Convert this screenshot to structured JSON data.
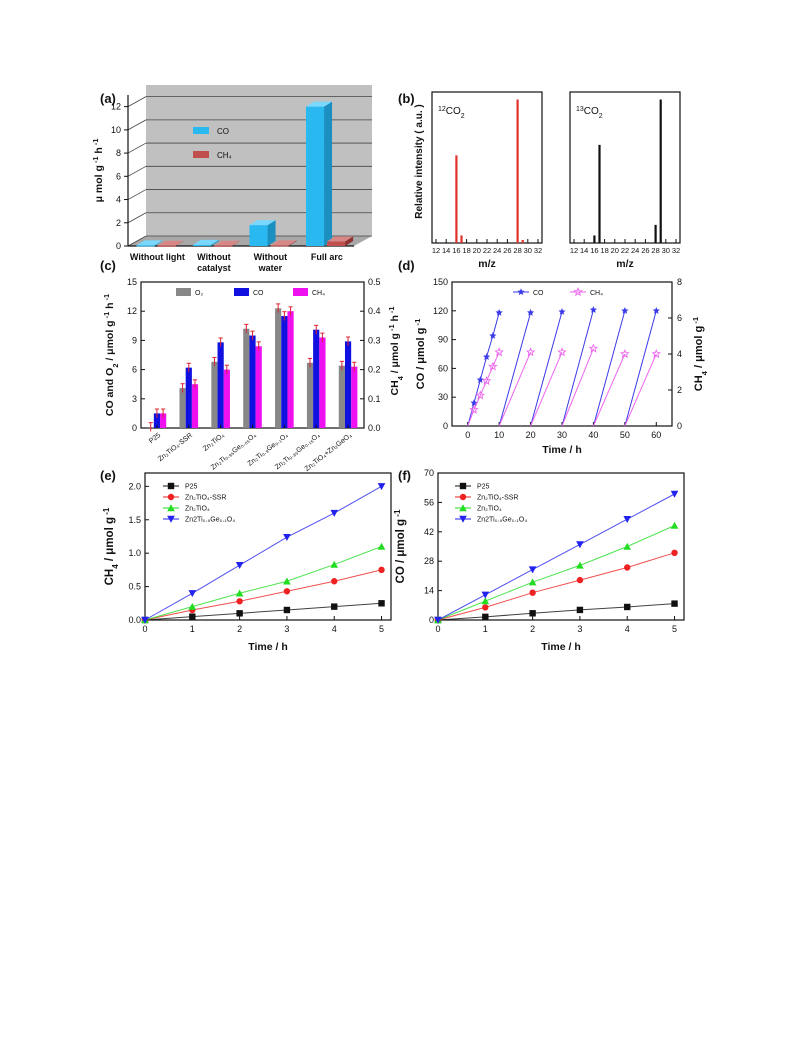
{
  "chart_data": [
    {
      "panel": "(a)",
      "type": "bar",
      "ylabel": "μ mol g-1 h-1",
      "yticks": [
        "0",
        "2",
        "4",
        "6",
        "8",
        "10",
        "12"
      ],
      "ylim": [
        0,
        13
      ],
      "categories": [
        "Without light",
        "Without catalyst",
        "Without water",
        "Full arc"
      ],
      "category_lines": [
        [
          "Without light"
        ],
        [
          "Without",
          "catalyst"
        ],
        [
          "Without",
          "water"
        ],
        [
          "Full arc"
        ]
      ],
      "series": [
        {
          "name": "CO",
          "color": "#29b8f0",
          "values": [
            0.05,
            0.1,
            1.8,
            12.0
          ]
        },
        {
          "name": "CH₄",
          "color": "#c0504d",
          "values": [
            0.02,
            0.02,
            0.05,
            0.4
          ]
        }
      ],
      "legend_position": "upper-center",
      "background": "#c0c0c0"
    },
    {
      "panel": "(b)",
      "type": "bar",
      "ylabel": "Relative intensity ( a.u. )",
      "xlabel": "m/z",
      "xticks": [
        12,
        14,
        16,
        18,
        20,
        22,
        24,
        26,
        28,
        30,
        32
      ],
      "xlim": [
        12,
        32
      ],
      "subplots": [
        {
          "label_sup": "12",
          "label_main": "CO",
          "label_sub": "2",
          "color": "#e0302a",
          "x": [
            16,
            17,
            28,
            29
          ],
          "values": [
            0.58,
            0.05,
            0.95,
            0.02
          ]
        },
        {
          "label_sup": "13",
          "label_main": "CO",
          "label_sub": "2",
          "color": "#111111",
          "x": [
            16,
            17,
            28,
            29
          ],
          "values": [
            0.05,
            0.65,
            0.12,
            0.95
          ]
        }
      ]
    },
    {
      "panel": "(c)",
      "type": "bar",
      "ylabel_left": "CO and O2 / μmol g-1 h-1",
      "ylabel_right": "CH4 / μmol g-1 h-1",
      "ylim_left": [
        0,
        15
      ],
      "ylim_right": [
        0,
        0.5
      ],
      "yticks_left": [
        "0",
        "3",
        "6",
        "9",
        "12",
        "15"
      ],
      "yticks_right": [
        "0.0",
        "0.1",
        "0.2",
        "0.3",
        "0.4",
        "0.5"
      ],
      "categories": [
        "P25",
        "Zn₂TiO₄-SSR",
        "Zn₂TiO₄",
        "Zn₂Ti₀.₉₅Ge₀.₀₅O₄",
        "Zn₂Ti₀.₉Ge₀.₁O₄",
        "Zn₂Ti₀.₈₅Ge₀.₁₅O₄",
        "Zn₂TiO₄+Zn₂GeO₄"
      ],
      "series": [
        {
          "name": "O₂",
          "color": "#888888",
          "axis": "left",
          "values": [
            0.1,
            4.1,
            6.8,
            10.2,
            12.3,
            6.7,
            6.4
          ]
        },
        {
          "name": "CO",
          "color": "#1010e0",
          "axis": "left",
          "values": [
            1.5,
            6.2,
            8.8,
            9.5,
            11.5,
            10.1,
            8.9
          ]
        },
        {
          "name": "CH₄",
          "color": "#ee10ee",
          "axis": "right",
          "values": [
            0.05,
            0.15,
            0.2,
            0.28,
            0.4,
            0.31,
            0.21
          ]
        }
      ]
    },
    {
      "panel": "(d)",
      "type": "line",
      "xlabel": "Time / h",
      "ylabel_left": "CO / μmol g-1",
      "ylabel_right": "CH4 / μmol g-1",
      "xlim": [
        -5,
        65
      ],
      "xticks": [
        0,
        10,
        20,
        30,
        40,
        50,
        60
      ],
      "ylim_left": [
        0,
        150
      ],
      "yticks_left": [
        0,
        30,
        60,
        90,
        120,
        150
      ],
      "ylim_right": [
        0,
        8
      ],
      "yticks_right": [
        0,
        2,
        4,
        6,
        8
      ],
      "series": [
        {
          "name": "CO",
          "color": "#3a3ae8",
          "marker": "star",
          "axis": "left",
          "first_cycle": {
            "x": [
              0,
              2,
              4,
              6,
              8,
              10
            ],
            "y": [
              0,
              24,
              48,
              72,
              94,
              118
            ]
          },
          "cycles": [
            {
              "x": [
                10,
                20
              ],
              "y": [
                0,
                118
              ]
            },
            {
              "x": [
                20,
                30
              ],
              "y": [
                0,
                119
              ]
            },
            {
              "x": [
                30,
                40
              ],
              "y": [
                0,
                121
              ]
            },
            {
              "x": [
                40,
                50
              ],
              "y": [
                0,
                120
              ]
            },
            {
              "x": [
                50,
                60
              ],
              "y": [
                0,
                120
              ]
            }
          ]
        },
        {
          "name": "CH₄",
          "color": "#ee66ee",
          "marker": "open-star",
          "axis": "right",
          "first_cycle": {
            "x": [
              0,
              2,
              4,
              6,
              8,
              10
            ],
            "y": [
              0,
              0.9,
              1.7,
              2.5,
              3.3,
              4.1
            ]
          },
          "cycles": [
            {
              "x": [
                10,
                20
              ],
              "y": [
                0,
                4.1
              ]
            },
            {
              "x": [
                20,
                30
              ],
              "y": [
                0,
                4.1
              ]
            },
            {
              "x": [
                30,
                40
              ],
              "y": [
                0,
                4.3
              ]
            },
            {
              "x": [
                40,
                50
              ],
              "y": [
                0,
                4.0
              ]
            },
            {
              "x": [
                50,
                60
              ],
              "y": [
                0,
                4.0
              ]
            }
          ]
        }
      ]
    },
    {
      "panel": "(e)",
      "type": "line",
      "xlabel": "Time / h",
      "ylabel": "CH4 / μmol g-1",
      "xlim": [
        0,
        5.2
      ],
      "xticks": [
        0,
        1,
        2,
        3,
        4,
        5
      ],
      "ylim": [
        0,
        2.2
      ],
      "yticks": [
        "0.0",
        "0.5",
        "1.0",
        "1.5",
        "2.0"
      ],
      "x": [
        0,
        1,
        2,
        3,
        4,
        5
      ],
      "series": [
        {
          "name": "P25",
          "color": "#111111",
          "marker": "square",
          "values": [
            0,
            0.05,
            0.1,
            0.15,
            0.2,
            0.25
          ]
        },
        {
          "name": "Zn₂TiO₄-SSR",
          "color": "#ee2222",
          "marker": "circle",
          "values": [
            0,
            0.15,
            0.28,
            0.43,
            0.58,
            0.75
          ]
        },
        {
          "name": "Zn₂TiO₄",
          "color": "#22dd22",
          "marker": "triangle-up",
          "values": [
            0,
            0.2,
            0.4,
            0.58,
            0.83,
            1.1
          ]
        },
        {
          "name": "Zn2Ti₀.₉Ge₀.₁O₄",
          "color": "#2222ee",
          "marker": "triangle-down",
          "values": [
            0,
            0.4,
            0.82,
            1.24,
            1.6,
            2.0
          ]
        }
      ]
    },
    {
      "panel": "(f)",
      "type": "line",
      "xlabel": "Time / h",
      "ylabel": "CO / μmol g-1",
      "xlim": [
        0,
        5.2
      ],
      "xticks": [
        0,
        1,
        2,
        3,
        4,
        5
      ],
      "ylim": [
        0,
        70
      ],
      "yticks": [
        "0",
        "14",
        "28",
        "42",
        "56",
        "70"
      ],
      "x": [
        0,
        1,
        2,
        3,
        4,
        5
      ],
      "series": [
        {
          "name": "P25",
          "color": "#111111",
          "marker": "square",
          "values": [
            0,
            1.5,
            3.2,
            4.8,
            6.2,
            7.8
          ]
        },
        {
          "name": "Zn₂TiO₄-SSR",
          "color": "#ee2222",
          "marker": "circle",
          "values": [
            0,
            6,
            13,
            19,
            25,
            32
          ]
        },
        {
          "name": "Zn₂TiO₄",
          "color": "#22dd22",
          "marker": "triangle-up",
          "values": [
            0,
            9,
            18,
            26,
            35,
            45
          ]
        },
        {
          "name": "Zn2Ti₀.₉Ge₀.₁O₄",
          "color": "#2222ee",
          "marker": "triangle-down",
          "values": [
            0,
            12,
            24,
            36,
            48,
            60
          ]
        }
      ]
    }
  ]
}
